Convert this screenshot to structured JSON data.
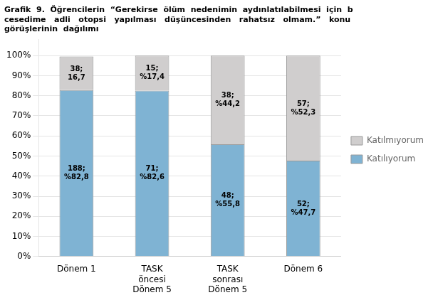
{
  "chart_data": {
    "type": "bar",
    "title": "Grafik  9.  Öğrencilerin  “Gerekirse  ölüm  nedenimin  aydınlatılabilmesi  için  b\ncesedime   adli   otopsi   yapılması   düşüncesinden   rahatsız   olmam.”   konu\ngörüşlerinin  dağılımı",
    "categories": [
      "Dönem 1",
      "TASK\nöncesi\nDönem 5",
      "TASK\nsonrası\nDönem 5",
      "Dönem 6"
    ],
    "series": [
      {
        "name": "Katılıyorum",
        "color": "#7fb3d3",
        "values": [
          82.8,
          82.6,
          55.8,
          47.7
        ],
        "value_labels": [
          "188;\n%82,8",
          "71;\n%82,6",
          "48;\n%55,8",
          "52;\n%47,7"
        ]
      },
      {
        "name": "Katılmıyorum",
        "color": "#d0cece",
        "values": [
          16.7,
          17.4,
          44.2,
          52.3
        ],
        "value_labels": [
          "38;\n16,7",
          "15;\n%17,4",
          "38;\n%44,2",
          "57;\n%52,3"
        ]
      }
    ],
    "stacked": true,
    "data_labels": true,
    "ylim": [
      0,
      108
    ],
    "yticks": [
      {
        "value": 0,
        "label": "0%"
      },
      {
        "value": 10,
        "label": "10%"
      },
      {
        "value": 20,
        "label": "20%"
      },
      {
        "value": 30,
        "label": "30%"
      },
      {
        "value": 40,
        "label": "40%"
      },
      {
        "value": 50,
        "label": "50%"
      },
      {
        "value": 60,
        "label": "60%"
      },
      {
        "value": 70,
        "label": "70%"
      },
      {
        "value": 80,
        "label": "80%"
      },
      {
        "value": 90,
        "label": "90%"
      },
      {
        "value": 100,
        "label": "100%"
      }
    ],
    "grid": true,
    "legend": "right"
  }
}
